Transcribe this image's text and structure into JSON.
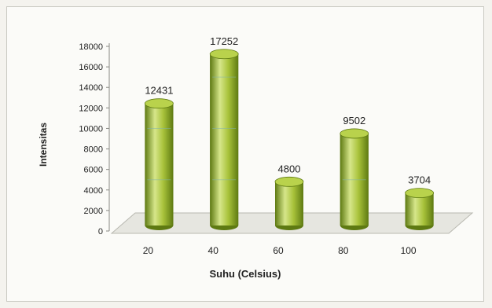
{
  "chart_data": {
    "type": "bar",
    "title": "",
    "xlabel": "Suhu (Celsius)",
    "ylabel": "Intensitas",
    "categories": [
      "20",
      "40",
      "60",
      "80",
      "100"
    ],
    "values": [
      12431,
      17252,
      4800,
      9502,
      3704
    ],
    "data_labels": [
      "12431",
      "17252",
      "4800",
      "9502",
      "3704"
    ],
    "yticks": [
      "0",
      "2000",
      "4000",
      "6000",
      "8000",
      "10000",
      "12000",
      "14000",
      "16000",
      "18000"
    ],
    "ylim": [
      0,
      18000
    ],
    "grid": false,
    "legend": "none",
    "style": "3d-cylinder"
  },
  "colors": {
    "bar_body": "#a8c23a",
    "bar_dark": "#5e7a12",
    "bar_light": "#d6e68a",
    "bar_top": "#b9d24c",
    "floor": "#e6e6e0"
  }
}
